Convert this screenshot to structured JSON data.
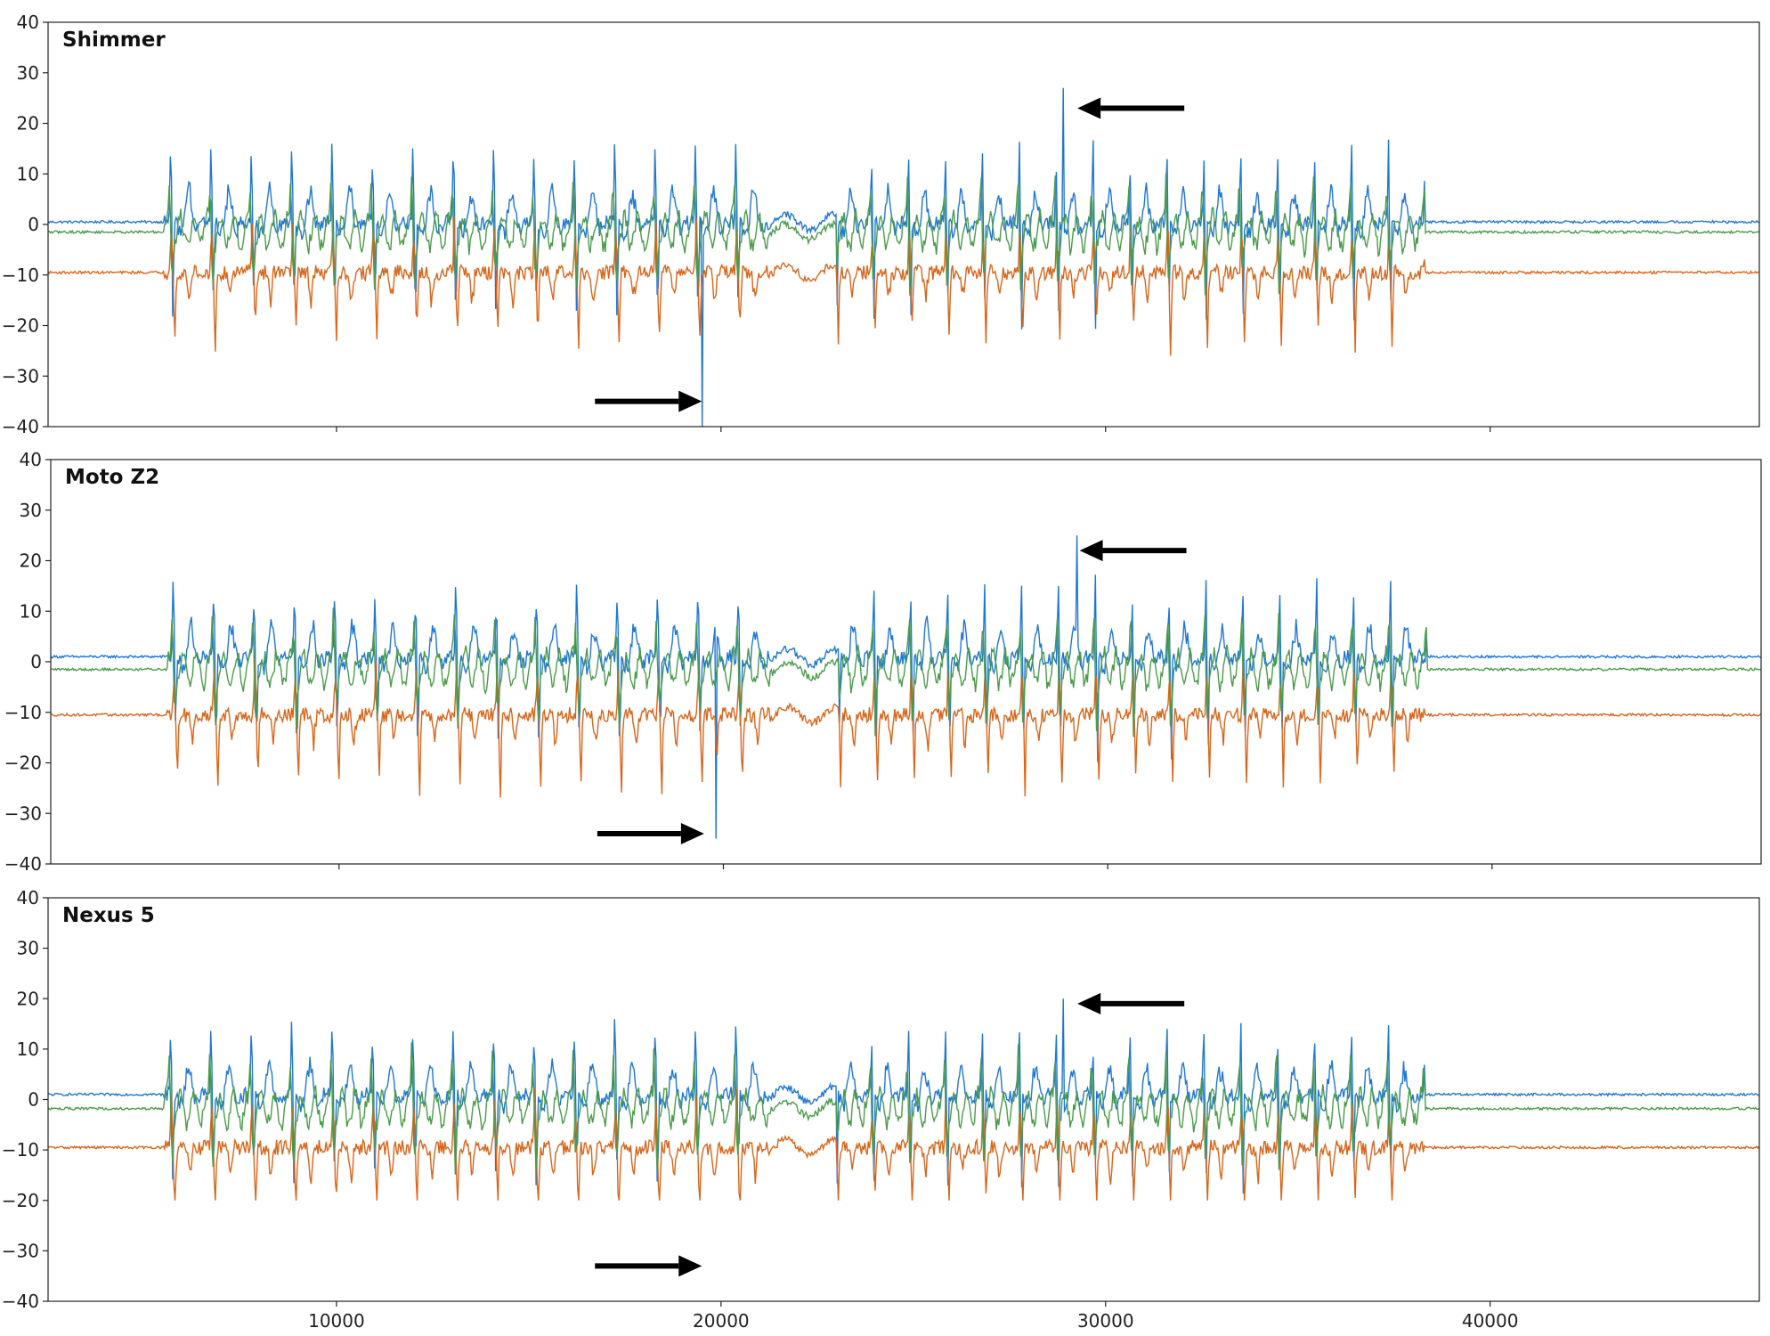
{
  "chart_data": [
    {
      "type": "line",
      "title": "Shimmer",
      "xlim": [
        2500,
        47000
      ],
      "ylim": [
        -40,
        40
      ],
      "yticks": [
        40,
        30,
        20,
        10,
        0,
        -10,
        -20,
        -30,
        -40
      ],
      "ytick_labels": [
        "40",
        "30",
        "20",
        "10",
        "0",
        "−10",
        "−20",
        "−30",
        "−40"
      ],
      "xticks": [
        10000,
        20000,
        30000,
        40000
      ],
      "xtick_labels": [],
      "signal_start": 5500,
      "signal_end": 38300,
      "quiet_region": [
        21200,
        23000
      ],
      "peak_markers": [
        {
          "x": 19500,
          "y": -40,
          "series": "blue",
          "direction": "right"
        },
        {
          "x": 28900,
          "y": 27,
          "series": "blue",
          "direction": "left"
        }
      ],
      "series": [
        {
          "name": "blue",
          "color": "#1f77d4",
          "baseline": 0.5,
          "amplitude": 1.0,
          "min_clip": -40,
          "max_clip": 40
        },
        {
          "name": "orange",
          "color": "#d9651a",
          "baseline": -9.5,
          "amplitude": 0.9,
          "min_clip": -40,
          "max_clip": 40
        },
        {
          "name": "green",
          "color": "#4a9c4a",
          "baseline": -1.5,
          "amplitude": 0.75,
          "min_clip": -40,
          "max_clip": 40
        }
      ],
      "annotations": [
        {
          "x": 19500,
          "y": -35,
          "direction": "right"
        },
        {
          "x": 29500,
          "y": 23,
          "direction": "left"
        }
      ]
    },
    {
      "type": "line",
      "title": "Moto Z2",
      "xlim": [
        2500,
        47000
      ],
      "ylim": [
        -40,
        40
      ],
      "yticks": [
        40,
        30,
        20,
        10,
        0,
        -10,
        -20,
        -30,
        -40
      ],
      "ytick_labels": [
        "40",
        "30",
        "20",
        "10",
        "0",
        "−10",
        "−20",
        "−30",
        "−40"
      ],
      "xticks": [
        10000,
        20000,
        30000,
        40000
      ],
      "xtick_labels": [],
      "signal_start": 5500,
      "signal_end": 38300,
      "quiet_region": [
        21200,
        23000
      ],
      "peak_markers": [
        {
          "x": 19800,
          "y": -35,
          "series": "blue",
          "direction": "right"
        },
        {
          "x": 29200,
          "y": 25,
          "series": "blue",
          "direction": "left"
        }
      ],
      "series": [
        {
          "name": "blue",
          "color": "#1f77d4",
          "baseline": 1.0,
          "amplitude": 0.95,
          "min_clip": -40,
          "max_clip": 40
        },
        {
          "name": "orange",
          "color": "#d9651a",
          "baseline": -10.5,
          "amplitude": 0.9,
          "min_clip": -40,
          "max_clip": 40
        },
        {
          "name": "green",
          "color": "#4a9c4a",
          "baseline": -1.5,
          "amplitude": 0.75,
          "min_clip": -40,
          "max_clip": 40
        }
      ],
      "annotations": [
        {
          "x": 19500,
          "y": -34,
          "direction": "right"
        },
        {
          "x": 29500,
          "y": 22,
          "direction": "left"
        }
      ]
    },
    {
      "type": "line",
      "title": "Nexus 5",
      "xlim": [
        2500,
        47000
      ],
      "ylim": [
        -40,
        40
      ],
      "yticks": [
        40,
        30,
        20,
        10,
        0,
        -10,
        -20,
        -30,
        -40
      ],
      "ytick_labels": [
        "40",
        "30",
        "20",
        "10",
        "0",
        "−10",
        "−20",
        "−30",
        "−40"
      ],
      "xticks": [
        10000,
        20000,
        30000,
        40000
      ],
      "xtick_labels": [
        "10000",
        "20000",
        "30000",
        "40000"
      ],
      "signal_start": 5500,
      "signal_end": 38300,
      "quiet_region": [
        21200,
        23000
      ],
      "peak_markers": [
        {
          "x": 28900,
          "y": 20,
          "series": "blue",
          "direction": "left"
        }
      ],
      "series": [
        {
          "name": "blue",
          "color": "#1f77d4",
          "baseline": 1.0,
          "amplitude": 0.9,
          "min_clip": -20,
          "max_clip": 40
        },
        {
          "name": "orange",
          "color": "#d9651a",
          "baseline": -9.5,
          "amplitude": 0.9,
          "min_clip": -20,
          "max_clip": 40
        },
        {
          "name": "green",
          "color": "#4a9c4a",
          "baseline": -1.8,
          "amplitude": 0.75,
          "min_clip": -20,
          "max_clip": 40
        }
      ],
      "annotations": [
        {
          "x": 19500,
          "y": -33,
          "direction": "right"
        },
        {
          "x": 29500,
          "y": 19,
          "direction": "left"
        }
      ]
    }
  ]
}
